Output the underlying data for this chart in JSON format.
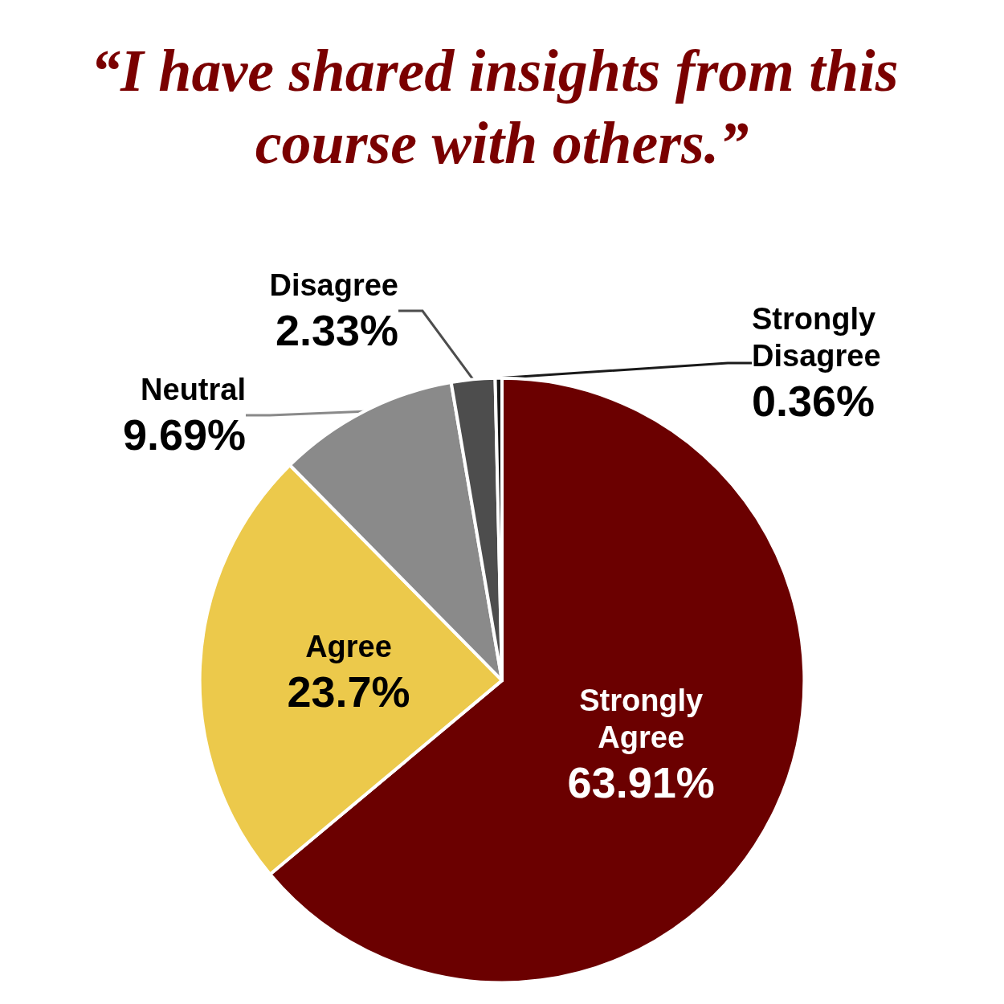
{
  "chart_data": {
    "type": "pie",
    "title": "“I have shared insights from this course with others.”",
    "categories": [
      "Strongly Agree",
      "Agree",
      "Neutral",
      "Disagree",
      "Strongly Disagree"
    ],
    "values": [
      63.91,
      23.7,
      9.69,
      2.33,
      0.36
    ],
    "value_labels": [
      "63.91%",
      "23.7%",
      "9.69%",
      "2.33%",
      "0.36%"
    ],
    "colors": [
      "#6b0000",
      "#ecc94b",
      "#8a8a8a",
      "#4d4d4d",
      "#1a1a1a"
    ],
    "legend": false
  }
}
